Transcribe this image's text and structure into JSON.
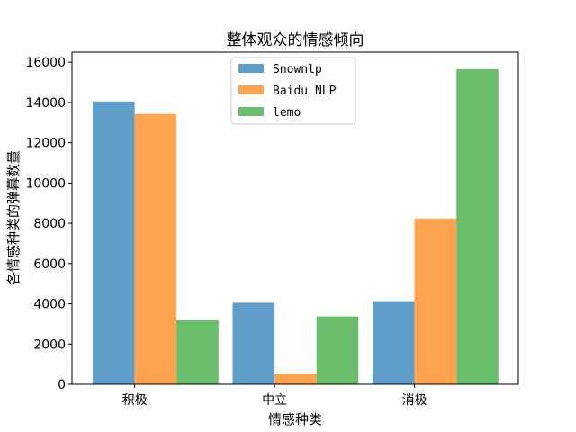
{
  "chart_data": {
    "type": "bar",
    "title": "整体观众的情感倾向",
    "xlabel": "情感种类",
    "ylabel": "各情感种类的弹幕数量",
    "categories": [
      "积极",
      "中立",
      "消极"
    ],
    "series": [
      {
        "name": "Snownlp",
        "color": "#5f9ec9",
        "values": [
          14050,
          4050,
          4130
        ]
      },
      {
        "name": "Baidu NLP",
        "color": "#fea451",
        "values": [
          13430,
          530,
          8230
        ]
      },
      {
        "name": "lemo",
        "color": "#6abd6b",
        "values": [
          3200,
          3370,
          15650
        ]
      }
    ],
    "ylim": [
      0,
      16500
    ],
    "yticks": [
      0,
      2000,
      4000,
      6000,
      8000,
      10000,
      12000,
      14000,
      16000
    ],
    "yticks_labels": [
      "0",
      "2000",
      "4000",
      "6000",
      "8000",
      "10000",
      "12000",
      "14000",
      "16000"
    ],
    "grid": false,
    "legend_position": "top-center"
  }
}
